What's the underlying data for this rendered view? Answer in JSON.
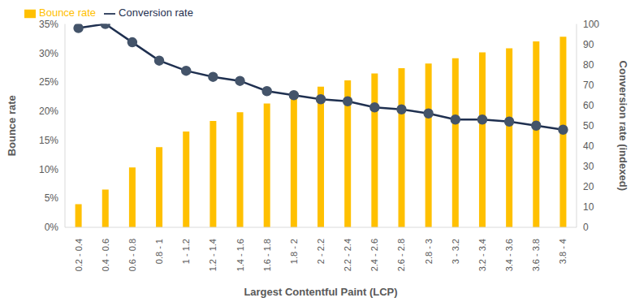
{
  "chart_data": {
    "type": "bar",
    "x_label": "Largest Contentful Paint (LCP)",
    "y_label": "Bounce rate",
    "y2_label": "Conversion rate (indexed)",
    "categories": [
      "0.2 - 0.4",
      "0.4 - 0.6",
      "0.6 - 0.8",
      "0.8 - 1",
      "1 - 1.2",
      "1.2 - 1.4",
      "1.4 - 1.6",
      "1.6 - 1.8",
      "1.8 - 2",
      "2 - 2.2",
      "2.2 - 2.4",
      "2.4 - 2.6",
      "2.6 - 2.8",
      "2.8 - 3",
      "3 - 3.2",
      "3.2 - 3.4",
      "3.4 - 3.6",
      "3.6 - 3.8",
      "3.8 - 4"
    ],
    "series": [
      {
        "name": "Bounce rate",
        "type": "bar",
        "color": "#ffc000",
        "values": [
          4,
          6.5,
          10.3,
          13.8,
          16.5,
          18.3,
          19.8,
          21.3,
          22.5,
          24.2,
          25.3,
          26.5,
          27.4,
          28.2,
          29.1,
          30.1,
          30.8,
          32,
          32.8
        ]
      },
      {
        "name": "Conversion rate",
        "type": "line",
        "axis": "y2",
        "color": "#1f3050",
        "marker": "circle",
        "values": [
          98,
          100,
          91,
          82,
          77,
          74,
          72,
          67,
          65,
          63,
          62,
          59,
          58,
          56,
          53,
          53,
          52,
          50,
          48
        ]
      }
    ],
    "ylim": [
      0,
      35
    ],
    "yticks": [
      {
        "value": 0,
        "label": "0%"
      },
      {
        "value": 5,
        "label": "5%"
      },
      {
        "value": 10,
        "label": "10%"
      },
      {
        "value": 15,
        "label": "15%"
      },
      {
        "value": 20,
        "label": "20%"
      },
      {
        "value": 25,
        "label": "25%"
      },
      {
        "value": 30,
        "label": "30%"
      },
      {
        "value": 35,
        "label": "35%"
      }
    ],
    "y2lim": [
      0,
      100
    ],
    "y2ticks": [
      0,
      10,
      20,
      30,
      40,
      50,
      60,
      70,
      80,
      90,
      100
    ],
    "grid": false,
    "legend": "upper left",
    "data_labels": false
  }
}
